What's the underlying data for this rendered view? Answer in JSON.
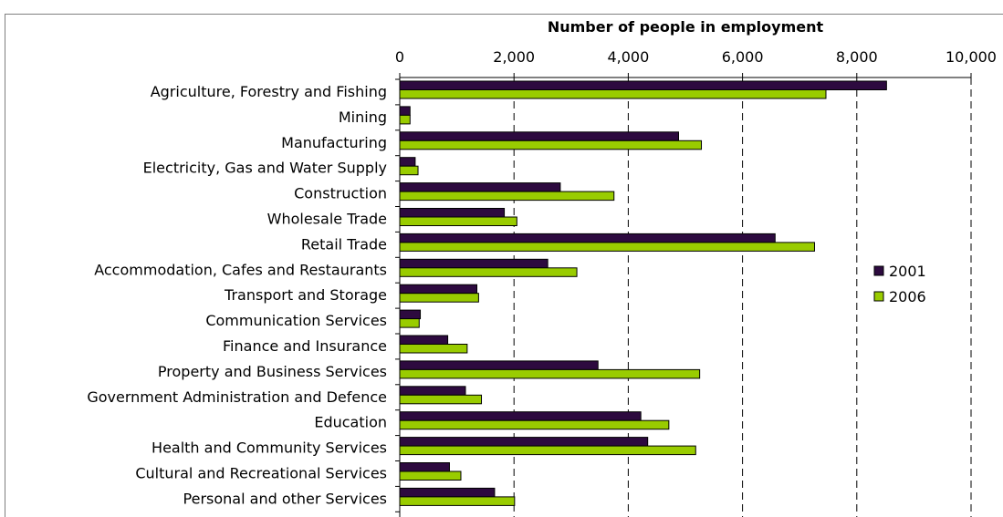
{
  "chart_data": {
    "type": "bar",
    "orientation": "horizontal",
    "title": "",
    "xlabel": "Number of people in employment",
    "ylabel": "",
    "xlim": [
      0,
      10000
    ],
    "x_ticks": [
      "0",
      "2,000",
      "4,000",
      "6,000",
      "8,000",
      "10,000"
    ],
    "x_tick_values": [
      0,
      2000,
      4000,
      6000,
      8000,
      10000
    ],
    "grid": "vertical dashed",
    "legend_position": "right",
    "categories": [
      "Agriculture, Forestry and Fishing",
      "Mining",
      "Manufacturing",
      "Electricity, Gas and Water Supply",
      "Construction",
      "Wholesale Trade",
      "Retail Trade",
      "Accommodation, Cafes and Restaurants",
      "Transport and Storage",
      "Communication Services",
      "Finance and Insurance",
      "Property and Business Services",
      "Government Administration and Defence",
      "Education",
      "Health and Community Services",
      "Cultural and Recreational Services",
      "Personal and other Services"
    ],
    "series": [
      {
        "name": "2001",
        "color": "#2d0a3f",
        "values": [
          8520,
          180,
          4880,
          270,
          2810,
          1830,
          6570,
          2590,
          1350,
          360,
          840,
          3470,
          1150,
          4220,
          4340,
          870,
          1660
        ]
      },
      {
        "name": "2006",
        "color": "#99cc00",
        "values": [
          7460,
          180,
          5280,
          320,
          3750,
          2050,
          7260,
          3100,
          1380,
          340,
          1180,
          5250,
          1430,
          4710,
          5180,
          1070,
          2010
        ]
      }
    ]
  }
}
